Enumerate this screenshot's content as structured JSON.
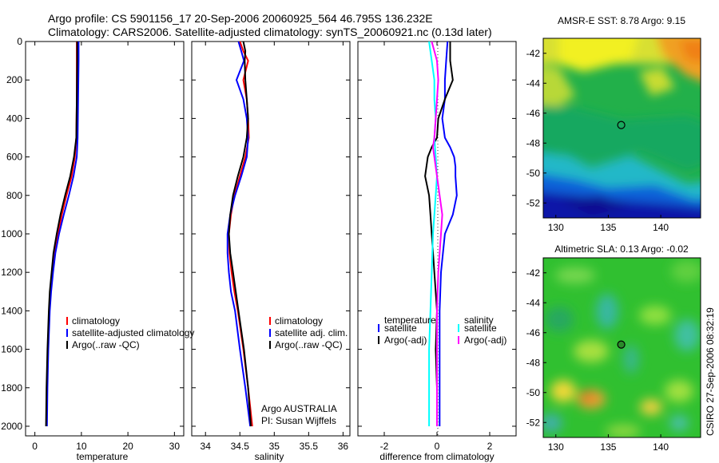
{
  "title_line1": "Argo profile: CS 5901156_17 20-Sep-2006 20060925_564 46.795S 136.232E",
  "title_line2": "Climatology: CARS2006. Satellite-adjusted climatology: synTS_20060921.nc (0.13d later)",
  "credit": "CSIRO 27-Sep-2006 08:32:19",
  "colors": {
    "climatology": "#ff0000",
    "satellite": "#0000ff",
    "argo": "#000000",
    "salinity_satellite": "#00ffff",
    "salinity_argo": "#ff00ff"
  },
  "chart_data": [
    {
      "type": "line",
      "panel": "temperature",
      "xlabel": "temperature",
      "xlim": [
        -2,
        32
      ],
      "xticks": [
        "0",
        "10",
        "20",
        "30"
      ],
      "xtick_values": [
        0,
        10,
        20,
        30
      ],
      "ylim": [
        2050,
        0
      ],
      "yticks": [
        "0",
        "200",
        "400",
        "600",
        "800",
        "1000",
        "1200",
        "1400",
        "1600",
        "1800",
        "2000"
      ],
      "ytick_values": [
        0,
        200,
        400,
        600,
        800,
        1000,
        1200,
        1400,
        1600,
        1800,
        2000
      ],
      "legend": [
        "climatology",
        "satellite-adjusted climatology",
        "Argo(..raw -QC)"
      ],
      "series": [
        {
          "name": "climatology",
          "color_key": "climatology",
          "depth": [
            0,
            100,
            300,
            500,
            600,
            700,
            800,
            900,
            1000,
            1100,
            1200,
            1300,
            1400,
            1600,
            1800,
            2000
          ],
          "values": [
            9.0,
            9.0,
            9.0,
            8.9,
            8.6,
            7.9,
            6.8,
            5.8,
            5.0,
            4.3,
            3.8,
            3.4,
            3.1,
            2.8,
            2.6,
            2.5
          ]
        },
        {
          "name": "satellite-adjusted climatology",
          "color_key": "satellite",
          "depth": [
            0,
            100,
            300,
            500,
            600,
            700,
            800,
            900,
            1000,
            1100,
            1200,
            1300,
            1400,
            1600,
            1800,
            2000
          ],
          "values": [
            9.4,
            9.4,
            9.3,
            9.2,
            9.0,
            8.3,
            7.3,
            6.2,
            5.2,
            4.4,
            3.9,
            3.5,
            3.2,
            2.9,
            2.7,
            2.6
          ]
        },
        {
          "name": "Argo(..raw -QC)",
          "color_key": "argo",
          "depth": [
            0,
            100,
            300,
            500,
            600,
            700,
            800,
            900,
            1000,
            1100,
            1200,
            1300,
            1400,
            1600,
            1800,
            2000
          ],
          "values": [
            9.1,
            9.1,
            9.0,
            8.9,
            8.4,
            7.6,
            6.5,
            5.5,
            4.7,
            4.0,
            3.6,
            3.2,
            3.0,
            2.7,
            2.5,
            2.4
          ]
        }
      ]
    },
    {
      "type": "line",
      "panel": "salinity",
      "xlabel": "salinity",
      "xlim": [
        33.8,
        36.1
      ],
      "xticks": [
        "34",
        "34.5",
        "35",
        "35.5",
        "36"
      ],
      "xtick_values": [
        34,
        34.5,
        35,
        35.5,
        36
      ],
      "ylim": [
        2050,
        0
      ],
      "legend": [
        "climatology",
        "satellite adj. clim.",
        "Argo(..raw -QC)"
      ],
      "annotation": [
        "Argo AUSTRALIA",
        "PI: Susan Wijffels"
      ],
      "series": [
        {
          "name": "climatology",
          "color_key": "climatology",
          "depth": [
            0,
            50,
            100,
            200,
            300,
            400,
            500,
            600,
            700,
            800,
            900,
            1000,
            1100,
            1200,
            1300,
            1400,
            1600,
            1800,
            2000
          ],
          "values": [
            34.5,
            34.55,
            34.62,
            34.55,
            34.6,
            34.62,
            34.63,
            34.58,
            34.5,
            34.42,
            34.37,
            34.34,
            34.35,
            34.38,
            34.42,
            34.47,
            34.55,
            34.62,
            34.68
          ]
        },
        {
          "name": "satellite adj. clim.",
          "color_key": "satellite",
          "depth": [
            0,
            50,
            100,
            200,
            300,
            400,
            500,
            600,
            700,
            800,
            900,
            1000,
            1100,
            1200,
            1300,
            1400,
            1600,
            1800,
            2000
          ],
          "values": [
            34.48,
            34.52,
            34.56,
            34.45,
            34.55,
            34.6,
            34.62,
            34.6,
            34.52,
            34.43,
            34.36,
            34.32,
            34.32,
            34.34,
            34.37,
            34.43,
            34.5,
            34.58,
            34.65
          ]
        },
        {
          "name": "Argo(..raw -QC)",
          "color_key": "argo",
          "depth": [
            0,
            50,
            100,
            200,
            300,
            400,
            500,
            600,
            700,
            800,
            900,
            1000,
            1100,
            1200,
            1300,
            1400,
            1600,
            1800,
            2000
          ],
          "values": [
            34.55,
            34.58,
            34.57,
            34.58,
            34.6,
            34.62,
            34.6,
            34.55,
            34.47,
            34.4,
            34.36,
            34.34,
            34.36,
            34.4,
            34.44,
            34.48,
            34.56,
            34.62,
            34.66
          ]
        }
      ]
    },
    {
      "type": "line",
      "panel": "difference",
      "xlabel": "difference from climatology",
      "xlim": [
        -3,
        3
      ],
      "xticks": [
        "-2",
        "0",
        "2"
      ],
      "xtick_values": [
        -2,
        0,
        2
      ],
      "ylim": [
        2050,
        0
      ],
      "legend_temperature_title": "temperature",
      "legend_salinity_title": "salinity",
      "legend_temperature": [
        "satellite",
        "Argo(-adj)"
      ],
      "legend_salinity": [
        "satellite",
        "Argo(-adj)"
      ],
      "series": [
        {
          "name": "temperature satellite",
          "color_key": "satellite",
          "depth": [
            0,
            100,
            200,
            300,
            400,
            500,
            550,
            600,
            650,
            700,
            800,
            900,
            1000,
            1200,
            1400,
            1600,
            1800,
            2000
          ],
          "values": [
            0.4,
            0.35,
            0.3,
            0.3,
            0.2,
            0.3,
            0.5,
            0.65,
            0.7,
            0.7,
            0.75,
            0.6,
            0.3,
            0.15,
            0.1,
            0.1,
            0.1,
            0.1
          ]
        },
        {
          "name": "temperature Argo(-adj)",
          "color_key": "argo",
          "depth": [
            0,
            100,
            200,
            300,
            400,
            500,
            550,
            600,
            650,
            700,
            800,
            900,
            1000,
            1200,
            1400,
            1600,
            1800,
            2000
          ],
          "values": [
            0.5,
            0.5,
            0.6,
            0.3,
            0.05,
            0.0,
            -0.2,
            -0.35,
            -0.4,
            -0.45,
            -0.3,
            -0.25,
            -0.2,
            -0.1,
            0.0,
            -0.05,
            0.0,
            0.0
          ]
        },
        {
          "name": "salinity satellite",
          "color_key": "salinity_satellite",
          "depth": [
            0,
            100,
            200,
            300,
            400,
            500,
            600,
            700,
            800,
            900,
            1000,
            1200,
            1400,
            1600,
            1800,
            2000
          ],
          "values": [
            -0.3,
            -0.2,
            -0.1,
            -0.1,
            -0.05,
            -0.1,
            -0.05,
            0.0,
            -0.05,
            -0.1,
            -0.15,
            -0.2,
            -0.25,
            -0.3,
            -0.3,
            -0.3
          ]
        },
        {
          "name": "salinity Argo(-adj)",
          "color_key": "salinity_argo",
          "depth": [
            0,
            100,
            200,
            300,
            400,
            500,
            550,
            600,
            700,
            800,
            900,
            1000,
            1200,
            1400,
            1600,
            1800,
            2000
          ],
          "values": [
            -0.2,
            0.0,
            0.05,
            0.0,
            -0.05,
            -0.1,
            -0.15,
            -0.1,
            0.0,
            0.1,
            0.2,
            0.15,
            0.05,
            0.0,
            0.0,
            0.0,
            0.0
          ]
        }
      ]
    },
    {
      "type": "heatmap",
      "panel": "sst_map",
      "title": "AMSR-E SST: 8.78 Argo: 9.15",
      "xlim": [
        128.8,
        143.8
      ],
      "ylim": [
        -53,
        -41
      ],
      "xticks": [
        "130",
        "135",
        "140"
      ],
      "xtick_values": [
        130,
        135,
        140
      ],
      "yticks": [
        "-42",
        "-44",
        "-46",
        "-48",
        "-50",
        "-52"
      ],
      "ytick_values": [
        -42,
        -44,
        -46,
        -48,
        -50,
        -52
      ],
      "float_position": {
        "lon": 136.232,
        "lat": -46.795
      }
    },
    {
      "type": "heatmap",
      "panel": "sla_map",
      "title": "Altimetric SLA: 0.13 Argo: -0.02",
      "xlim": [
        128.8,
        143.8
      ],
      "ylim": [
        -53,
        -41
      ],
      "xticks": [
        "130",
        "135",
        "140"
      ],
      "xtick_values": [
        130,
        135,
        140
      ],
      "yticks": [
        "-42",
        "-44",
        "-46",
        "-48",
        "-50",
        "-52"
      ],
      "ytick_values": [
        -42,
        -44,
        -46,
        -48,
        -50,
        -52
      ],
      "float_position": {
        "lon": 136.232,
        "lat": -46.795
      }
    }
  ]
}
